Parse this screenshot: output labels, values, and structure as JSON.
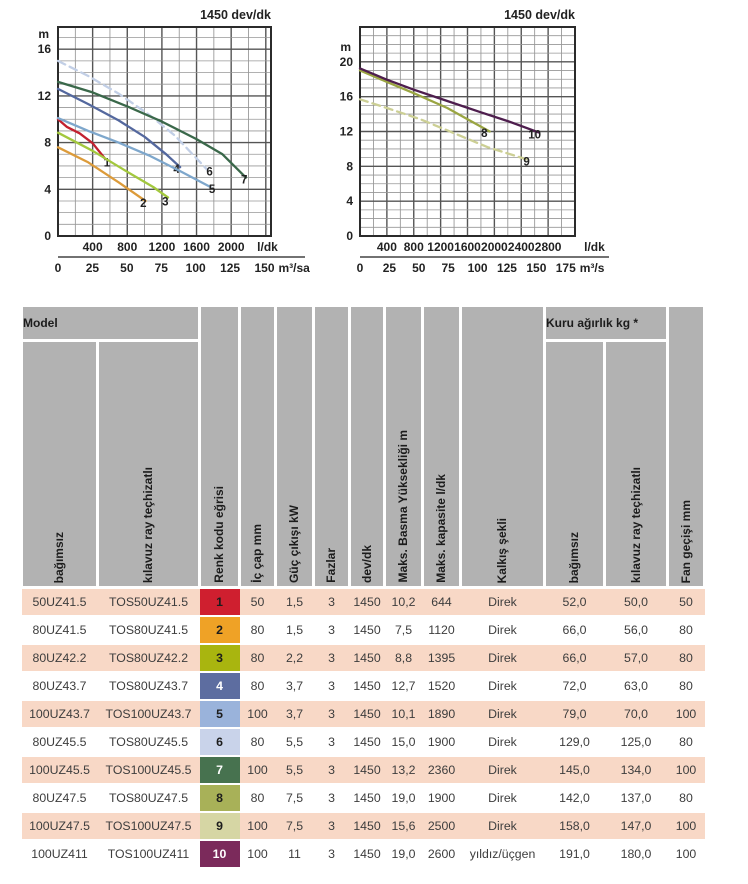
{
  "chart_data": [
    {
      "type": "line",
      "title": "1450 dev/dk",
      "ylabel": "m",
      "xlabel": "l/dk",
      "xlabel_secondary": "m³/sa",
      "xlim": [
        0,
        2460
      ],
      "ylim": [
        0,
        17.9
      ],
      "x_grid_step": 200,
      "x_major_step": 400,
      "y_grid_step": 1,
      "y_major_step": 4,
      "y_ticks": [
        0,
        4,
        8,
        12,
        16
      ],
      "x_ticks": [
        400,
        800,
        1200,
        1600,
        2000
      ],
      "x_ticks_secondary": [
        0,
        25,
        50,
        75,
        100,
        125,
        150
      ],
      "secondary_ratio": 15.9,
      "grid": true,
      "legend_position": "on-curve",
      "series": [
        {
          "name": "1",
          "color": "#C22130",
          "dashed": false,
          "label_xy": [
            565,
            5.95
          ],
          "points": [
            [
              0,
              10.0
            ],
            [
              100,
              9.35
            ],
            [
              250,
              8.8
            ],
            [
              400,
              7.95
            ],
            [
              545,
              6.6
            ]
          ]
        },
        {
          "name": "2",
          "color": "#DC9B3A",
          "dashed": false,
          "label_xy": [
            985,
            2.5
          ],
          "points": [
            [
              0,
              7.6
            ],
            [
              350,
              6.3
            ],
            [
              700,
              4.6
            ],
            [
              1010,
              3.0
            ]
          ]
        },
        {
          "name": "3",
          "color": "#A3C83E",
          "dashed": false,
          "label_xy": [
            1240,
            2.6
          ],
          "points": [
            [
              0,
              8.85
            ],
            [
              400,
              7.3
            ],
            [
              800,
              5.5
            ],
            [
              1100,
              4.2
            ],
            [
              1270,
              3.3
            ]
          ]
        },
        {
          "name": "4",
          "color": "#54689E",
          "dashed": false,
          "label_xy": [
            1370,
            5.4
          ],
          "points": [
            [
              0,
              12.6
            ],
            [
              350,
              11.3
            ],
            [
              700,
              9.9
            ],
            [
              1000,
              8.5
            ],
            [
              1250,
              7.0
            ],
            [
              1410,
              5.9
            ]
          ]
        },
        {
          "name": "5",
          "color": "#7EA7CC",
          "dashed": false,
          "label_xy": [
            1780,
            3.7
          ],
          "points": [
            [
              0,
              10.1
            ],
            [
              350,
              9.0
            ],
            [
              700,
              8.0
            ],
            [
              1050,
              6.9
            ],
            [
              1400,
              5.6
            ],
            [
              1760,
              4.2
            ]
          ]
        },
        {
          "name": "6",
          "color": "#C2CFE6",
          "dashed": true,
          "label_xy": [
            1750,
            5.2
          ],
          "points": [
            [
              0,
              15.0
            ],
            [
              350,
              13.7
            ],
            [
              700,
              12.2
            ],
            [
              1050,
              10.4
            ],
            [
              1350,
              8.6
            ],
            [
              1720,
              5.7
            ]
          ]
        },
        {
          "name": "7",
          "color": "#3A684A",
          "dashed": false,
          "label_xy": [
            2150,
            4.5
          ],
          "points": [
            [
              0,
              13.2
            ],
            [
              400,
              12.3
            ],
            [
              800,
              11.1
            ],
            [
              1200,
              9.8
            ],
            [
              1600,
              8.3
            ],
            [
              1900,
              7.0
            ],
            [
              2170,
              5.0
            ]
          ]
        }
      ]
    },
    {
      "type": "line",
      "title": "1450 dev/dk",
      "ylabel": "m",
      "xlabel": "l/dk",
      "xlabel_secondary": "m³/s",
      "xlim": [
        0,
        3200
      ],
      "ylim": [
        0,
        24
      ],
      "x_grid_step": 200,
      "x_major_step": 400,
      "y_grid_step": 1,
      "y_major_step": 4,
      "y_ticks": [
        0,
        4,
        8,
        12,
        16,
        20
      ],
      "x_ticks": [
        400,
        800,
        1200,
        1600,
        2000,
        2400,
        2800
      ],
      "x_ticks_secondary": [
        0,
        25,
        50,
        75,
        100,
        125,
        150,
        175
      ],
      "secondary_ratio": 17.5,
      "grid": true,
      "legend_position": "on-curve",
      "series": [
        {
          "name": "8",
          "color": "#9AA542",
          "dashed": false,
          "label_xy": [
            1850,
            11.35
          ],
          "points": [
            [
              0,
              19.0
            ],
            [
              400,
              17.7
            ],
            [
              800,
              16.4
            ],
            [
              1300,
              14.7
            ],
            [
              1650,
              13.2
            ],
            [
              1930,
              12.0
            ]
          ]
        },
        {
          "name": "9",
          "color": "#CCCF94",
          "dashed": true,
          "label_xy": [
            2480,
            8.1
          ],
          "points": [
            [
              0,
              15.7
            ],
            [
              400,
              14.7
            ],
            [
              900,
              13.4
            ],
            [
              1400,
              11.8
            ],
            [
              1900,
              10.2
            ],
            [
              2520,
              8.7
            ]
          ]
        },
        {
          "name": "10",
          "color": "#4E1E4E",
          "dashed": false,
          "label_xy": [
            2600,
            11.2
          ],
          "points": [
            [
              0,
              19.25
            ],
            [
              400,
              17.95
            ],
            [
              800,
              16.8
            ],
            [
              1300,
              15.5
            ],
            [
              1800,
              14.2
            ],
            [
              2200,
              13.2
            ],
            [
              2660,
              11.9
            ]
          ]
        }
      ]
    }
  ],
  "table": {
    "header": {
      "model_group": "Model",
      "dry_weight_group": "Kuru ağırlık kg *",
      "col_bagimsiz": "bağımsız",
      "col_kilavuz": "kılavuz ray teçhizatlı",
      "col_renk": "Renk kodu eğrisi",
      "col_ic_cap": "İç çap mm",
      "col_guc": "Güç çıkışı kW",
      "col_fazlar": "Fazlar",
      "col_devdk": "dev/dk",
      "col_maks_basma": "Maks. Basma Yüksekliği m",
      "col_maks_kapasite": "Maks. kapasite l/dk",
      "col_kalkis": "Kalkış şekli",
      "col_kuru_bagimsiz": "bağımsız",
      "col_kuru_kilavuz": "kılavuz ray teçhizatlı",
      "col_fan": "Fan geçişi mm"
    },
    "rows": [
      {
        "model": "50UZ41.5",
        "model_tos": "TOS50UZ41.5",
        "code": "1",
        "code_bg": "#CF1F2F",
        "code_fg": "#1d1d1d",
        "cap": "50",
        "kw": "1,5",
        "faz": "3",
        "rpm": "1450",
        "head": "10,2",
        "capmax": "644",
        "start": "Direk",
        "w1": "52,0",
        "w2": "50,0",
        "fan": "50"
      },
      {
        "model": "80UZ41.5",
        "model_tos": "TOS80UZ41.5",
        "code": "2",
        "code_bg": "#EFA226",
        "code_fg": "#1d1d1d",
        "cap": "80",
        "kw": "1,5",
        "faz": "3",
        "rpm": "1450",
        "head": "7,5",
        "capmax": "1120",
        "start": "Direk",
        "w1": "66,0",
        "w2": "56,0",
        "fan": "80"
      },
      {
        "model": "80UZ42.2",
        "model_tos": "TOS80UZ42.2",
        "code": "3",
        "code_bg": "#A9B50F",
        "code_fg": "#1d1d1d",
        "cap": "80",
        "kw": "2,2",
        "faz": "3",
        "rpm": "1450",
        "head": "8,8",
        "capmax": "1395",
        "start": "Direk",
        "w1": "66,0",
        "w2": "57,0",
        "fan": "80"
      },
      {
        "model": "80UZ43.7",
        "model_tos": "TOS80UZ43.7",
        "code": "4",
        "code_bg": "#5D6DA0",
        "code_fg": "#ffffff",
        "cap": "80",
        "kw": "3,7",
        "faz": "3",
        "rpm": "1450",
        "head": "12,7",
        "capmax": "1520",
        "start": "Direk",
        "w1": "72,0",
        "w2": "63,0",
        "fan": "80"
      },
      {
        "model": "100UZ43.7",
        "model_tos": "TOS100UZ43.7",
        "code": "5",
        "code_bg": "#9AB3DB",
        "code_fg": "#1d1d1d",
        "cap": "100",
        "kw": "3,7",
        "faz": "3",
        "rpm": "1450",
        "head": "10,1",
        "capmax": "1890",
        "start": "Direk",
        "w1": "79,0",
        "w2": "70,0",
        "fan": "100"
      },
      {
        "model": "80UZ45.5",
        "model_tos": "TOS80UZ45.5",
        "code": "6",
        "code_bg": "#C9D3EA",
        "code_fg": "#1d1d1d",
        "cap": "80",
        "kw": "5,5",
        "faz": "3",
        "rpm": "1450",
        "head": "15,0",
        "capmax": "1900",
        "start": "Direk",
        "w1": "129,0",
        "w2": "125,0",
        "fan": "80"
      },
      {
        "model": "100UZ45.5",
        "model_tos": "TOS100UZ45.5",
        "code": "7",
        "code_bg": "#47724F",
        "code_fg": "#ffffff",
        "cap": "100",
        "kw": "5,5",
        "faz": "3",
        "rpm": "1450",
        "head": "13,2",
        "capmax": "2360",
        "start": "Direk",
        "w1": "145,0",
        "w2": "134,0",
        "fan": "100"
      },
      {
        "model": "80UZ47.5",
        "model_tos": "TOS80UZ47.5",
        "code": "8",
        "code_bg": "#A8B158",
        "code_fg": "#1d1d1d",
        "cap": "80",
        "kw": "7,5",
        "faz": "3",
        "rpm": "1450",
        "head": "19,0",
        "capmax": "1900",
        "start": "Direk",
        "w1": "142,0",
        "w2": "137,0",
        "fan": "80"
      },
      {
        "model": "100UZ47.5",
        "model_tos": "TOS100UZ47.5",
        "code": "9",
        "code_bg": "#D6D6A4",
        "code_fg": "#1d1d1d",
        "cap": "100",
        "kw": "7,5",
        "faz": "3",
        "rpm": "1450",
        "head": "15,6",
        "capmax": "2500",
        "start": "Direk",
        "w1": "158,0",
        "w2": "147,0",
        "fan": "100"
      },
      {
        "model": "100UZ411",
        "model_tos": "TOS100UZ411",
        "code": "10",
        "code_bg": "#7B2A5B",
        "code_fg": "#ffffff",
        "cap": "100",
        "kw": "11",
        "faz": "3",
        "rpm": "1450",
        "head": "19,0",
        "capmax": "2600",
        "start": "yıldız/üçgen",
        "w1": "191,0",
        "w2": "180,0",
        "fan": "100"
      }
    ]
  }
}
